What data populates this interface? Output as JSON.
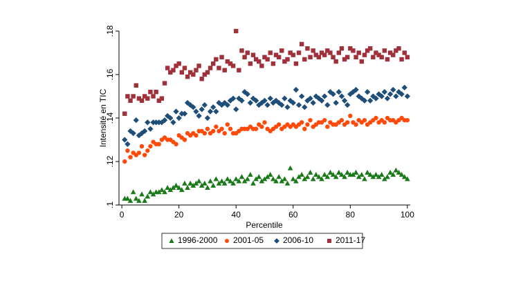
{
  "chart_data": {
    "type": "scatter",
    "x_label": "Percentile",
    "y_label": "Intensité en TIC",
    "x": [
      1,
      2,
      3,
      4,
      5,
      6,
      7,
      8,
      9,
      10,
      11,
      12,
      13,
      14,
      15,
      16,
      17,
      18,
      19,
      20,
      21,
      22,
      23,
      24,
      25,
      26,
      27,
      28,
      29,
      30,
      31,
      32,
      33,
      34,
      35,
      36,
      37,
      38,
      39,
      40,
      41,
      42,
      43,
      44,
      45,
      46,
      47,
      48,
      49,
      50,
      51,
      52,
      53,
      54,
      55,
      56,
      57,
      58,
      59,
      60,
      61,
      62,
      63,
      64,
      65,
      66,
      67,
      68,
      69,
      70,
      71,
      72,
      73,
      74,
      75,
      76,
      77,
      78,
      79,
      80,
      81,
      82,
      83,
      84,
      85,
      86,
      87,
      88,
      89,
      90,
      91,
      92,
      93,
      94,
      95,
      96,
      97,
      98,
      99,
      100
    ],
    "xlim": [
      -1,
      101
    ],
    "xticks": [
      0,
      20,
      40,
      60,
      80,
      100
    ],
    "ylim": [
      0.1,
      0.18
    ],
    "yticks": [
      {
        "value": 0.1,
        "label": ".1"
      },
      {
        "value": 0.12,
        "label": ".12"
      },
      {
        "value": 0.14,
        "label": ".14"
      },
      {
        "value": 0.16,
        "label": ".16"
      },
      {
        "value": 0.18,
        "label": ".18"
      }
    ],
    "legend": "bottom",
    "series": [
      {
        "name": "1996-2000",
        "color": "#1a7a1a",
        "marker": "triangle",
        "values": [
          0.103,
          0.103,
          0.102,
          0.106,
          0.103,
          0.102,
          0.105,
          0.102,
          0.104,
          0.106,
          0.105,
          0.106,
          0.106,
          0.107,
          0.106,
          0.108,
          0.107,
          0.108,
          0.109,
          0.108,
          0.107,
          0.11,
          0.108,
          0.11,
          0.109,
          0.11,
          0.111,
          0.109,
          0.11,
          0.108,
          0.111,
          0.109,
          0.112,
          0.11,
          0.111,
          0.11,
          0.112,
          0.111,
          0.11,
          0.112,
          0.111,
          0.113,
          0.111,
          0.112,
          0.114,
          0.11,
          0.112,
          0.113,
          0.111,
          0.112,
          0.113,
          0.114,
          0.112,
          0.111,
          0.113,
          0.111,
          0.112,
          0.11,
          0.117,
          0.112,
          0.111,
          0.113,
          0.114,
          0.112,
          0.113,
          0.115,
          0.112,
          0.114,
          0.113,
          0.112,
          0.114,
          0.113,
          0.115,
          0.114,
          0.113,
          0.115,
          0.114,
          0.113,
          0.115,
          0.114,
          0.114,
          0.115,
          0.113,
          0.114,
          0.112,
          0.115,
          0.114,
          0.113,
          0.114,
          0.113,
          0.114,
          0.112,
          0.113,
          0.115,
          0.114,
          0.116,
          0.115,
          0.114,
          0.113,
          0.112
        ]
      },
      {
        "name": "2001-05",
        "color": "#ff4a0a",
        "marker": "circle",
        "values": [
          0.12,
          0.125,
          0.122,
          0.124,
          0.123,
          0.124,
          0.127,
          0.123,
          0.125,
          0.127,
          0.129,
          0.128,
          0.128,
          0.13,
          0.131,
          0.13,
          0.13,
          0.129,
          0.128,
          0.132,
          0.131,
          0.13,
          0.133,
          0.132,
          0.133,
          0.132,
          0.134,
          0.134,
          0.133,
          0.135,
          0.133,
          0.134,
          0.136,
          0.134,
          0.135,
          0.133,
          0.137,
          0.135,
          0.133,
          0.133,
          0.134,
          0.135,
          0.135,
          0.135,
          0.136,
          0.135,
          0.135,
          0.137,
          0.136,
          0.138,
          0.135,
          0.134,
          0.135,
          0.136,
          0.137,
          0.135,
          0.136,
          0.137,
          0.136,
          0.137,
          0.136,
          0.137,
          0.138,
          0.135,
          0.137,
          0.139,
          0.136,
          0.137,
          0.138,
          0.138,
          0.139,
          0.136,
          0.138,
          0.137,
          0.137,
          0.138,
          0.139,
          0.137,
          0.138,
          0.141,
          0.138,
          0.137,
          0.139,
          0.138,
          0.139,
          0.137,
          0.138,
          0.139,
          0.14,
          0.138,
          0.139,
          0.138,
          0.14,
          0.139,
          0.139,
          0.138,
          0.139,
          0.14,
          0.139,
          0.139
        ]
      },
      {
        "name": "2006-10",
        "color": "#1f4e79",
        "marker": "diamond",
        "values": [
          0.13,
          0.128,
          0.134,
          0.133,
          0.139,
          0.132,
          0.133,
          0.134,
          0.138,
          0.135,
          0.138,
          0.138,
          0.138,
          0.138,
          0.139,
          0.141,
          0.14,
          0.138,
          0.143,
          0.14,
          0.142,
          0.142,
          0.147,
          0.146,
          0.145,
          0.143,
          0.141,
          0.144,
          0.146,
          0.14,
          0.143,
          0.145,
          0.143,
          0.147,
          0.146,
          0.147,
          0.146,
          0.148,
          0.149,
          0.144,
          0.149,
          0.148,
          0.152,
          0.151,
          0.147,
          0.149,
          0.148,
          0.146,
          0.147,
          0.148,
          0.146,
          0.149,
          0.147,
          0.148,
          0.147,
          0.146,
          0.149,
          0.145,
          0.148,
          0.147,
          0.153,
          0.146,
          0.15,
          0.145,
          0.148,
          0.149,
          0.147,
          0.15,
          0.149,
          0.148,
          0.15,
          0.146,
          0.152,
          0.151,
          0.147,
          0.152,
          0.15,
          0.148,
          0.146,
          0.151,
          0.152,
          0.153,
          0.15,
          0.149,
          0.148,
          0.152,
          0.148,
          0.15,
          0.149,
          0.151,
          0.15,
          0.152,
          0.149,
          0.151,
          0.153,
          0.15,
          0.152,
          0.151,
          0.154,
          0.15
        ]
      },
      {
        "name": "2011-17",
        "color": "#a0303a",
        "marker": "square",
        "values": [
          0.142,
          0.15,
          0.148,
          0.15,
          0.155,
          0.149,
          0.148,
          0.15,
          0.149,
          0.152,
          0.15,
          0.152,
          0.148,
          0.149,
          0.156,
          0.163,
          0.161,
          0.162,
          0.164,
          0.165,
          0.161,
          0.163,
          0.159,
          0.161,
          0.16,
          0.162,
          0.164,
          0.158,
          0.16,
          0.161,
          0.163,
          0.165,
          0.167,
          0.163,
          0.168,
          0.162,
          0.166,
          0.165,
          0.164,
          0.18,
          0.162,
          0.171,
          0.168,
          0.17,
          0.165,
          0.169,
          0.167,
          0.166,
          0.164,
          0.168,
          0.167,
          0.17,
          0.165,
          0.169,
          0.168,
          0.171,
          0.166,
          0.167,
          0.17,
          0.169,
          0.165,
          0.17,
          0.174,
          0.167,
          0.172,
          0.168,
          0.171,
          0.169,
          0.168,
          0.17,
          0.169,
          0.171,
          0.17,
          0.168,
          0.166,
          0.17,
          0.172,
          0.167,
          0.168,
          0.172,
          0.171,
          0.168,
          0.17,
          0.166,
          0.169,
          0.171,
          0.172,
          0.168,
          0.17,
          0.169,
          0.168,
          0.171,
          0.167,
          0.17,
          0.169,
          0.171,
          0.172,
          0.167,
          0.17,
          0.168
        ]
      }
    ]
  }
}
